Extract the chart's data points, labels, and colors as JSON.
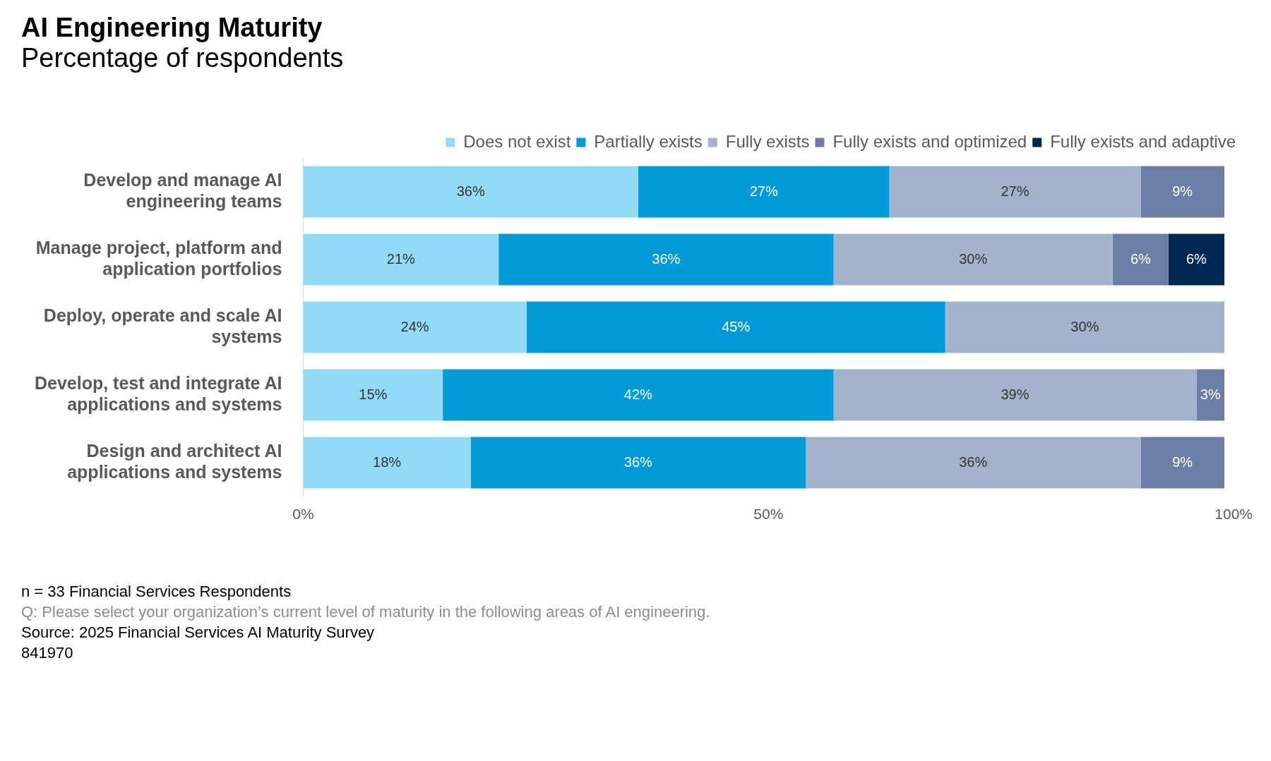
{
  "chart_data": {
    "type": "bar",
    "orientation": "horizontal",
    "stacked": true,
    "title": "AI Engineering Maturity",
    "subtitle": "Percentage of respondents",
    "categories": [
      "Develop and manage AI engineering teams",
      "Manage project, platform and application portfolios",
      "Deploy, operate and scale AI systems",
      "Develop, test and integrate AI applications and systems",
      "Design and architect AI applications and systems"
    ],
    "series": [
      {
        "name": "Does not exist",
        "color": "#92dbf7",
        "values": [
          36,
          21,
          24,
          15,
          18
        ],
        "value_labels": [
          "36%",
          "21%",
          "24%",
          "15%",
          "18%"
        ]
      },
      {
        "name": "Partially exists",
        "color": "#009bd8",
        "values": [
          27,
          36,
          45,
          42,
          36
        ],
        "value_labels": [
          "27%",
          "36%",
          "45%",
          "42%",
          "36%"
        ]
      },
      {
        "name": "Fully exists",
        "color": "#a2b3cb",
        "values": [
          27,
          30,
          30,
          39,
          36
        ],
        "value_labels": [
          "27%",
          "30%",
          "30%",
          "39%",
          "36%"
        ]
      },
      {
        "name": "Fully exists and optimized",
        "color": "#6a7fa3",
        "values": [
          9,
          6,
          null,
          3,
          9
        ],
        "value_labels": [
          "9%",
          "6%",
          null,
          "3%",
          "9%"
        ]
      },
      {
        "name": "Fully exists and adaptive",
        "color": "#002855",
        "values": [
          null,
          6,
          null,
          null,
          null
        ],
        "value_labels": [
          null,
          "6%",
          null,
          null,
          null
        ]
      }
    ],
    "xlim": [
      0,
      100
    ],
    "xticks": [
      {
        "value": 0,
        "label": "0%"
      },
      {
        "value": 50,
        "label": "50%"
      },
      {
        "value": 100,
        "label": "100%"
      }
    ],
    "grid": false,
    "legend": "top right",
    "annotations": [
      "n = 33 Financial Services Respondents",
      "Q: Please select your organization’s current level of maturity in the following areas of AI engineering.",
      "Source: 2025 Financial Services AI Maturity Survey",
      "841970"
    ]
  }
}
